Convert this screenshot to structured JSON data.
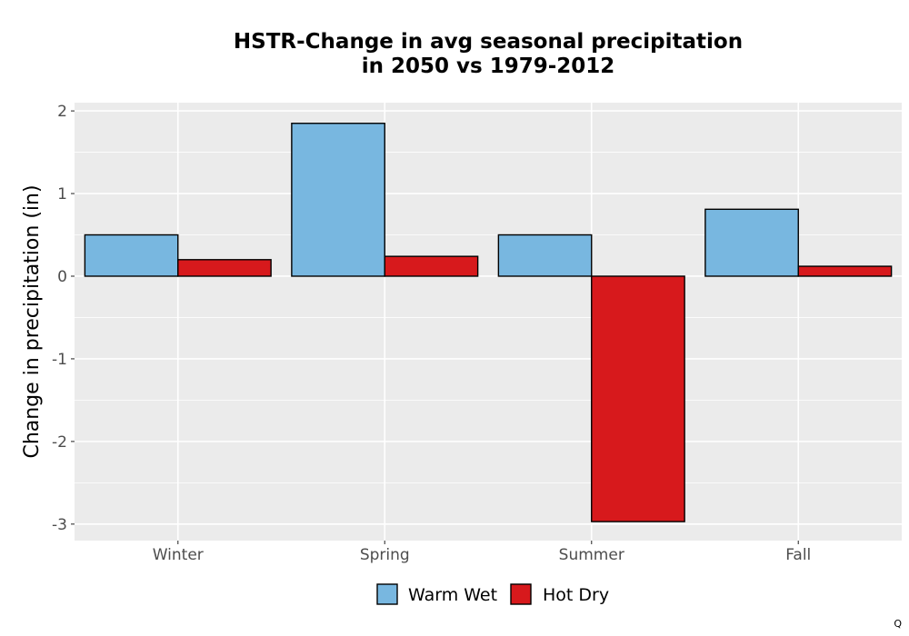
{
  "chart_data": {
    "type": "bar",
    "title": "HSTR-Change in avg seasonal precipitation",
    "title_line2": "in 2050 vs 1979-2012",
    "xlabel": "",
    "ylabel": "Change in precipitation (in)",
    "categories": [
      "Winter",
      "Spring",
      "Summer",
      "Fall"
    ],
    "series": [
      {
        "name": "Warm Wet",
        "color": "#78b7e0",
        "values": [
          0.5,
          1.85,
          0.5,
          0.81
        ]
      },
      {
        "name": "Hot Dry",
        "color": "#d7191c",
        "values": [
          0.2,
          0.24,
          -2.97,
          0.12
        ]
      }
    ],
    "ylim": [
      -3.2,
      2.1
    ],
    "yticks": [
      2,
      1,
      0,
      -1,
      -2,
      -3
    ],
    "ytick_labels": [
      "2",
      "1",
      "0",
      "-1",
      "-2",
      "-3"
    ],
    "grid": true,
    "legend_position": "bottom",
    "panel_background": "#ebebeb"
  },
  "corner_mark": "Q"
}
